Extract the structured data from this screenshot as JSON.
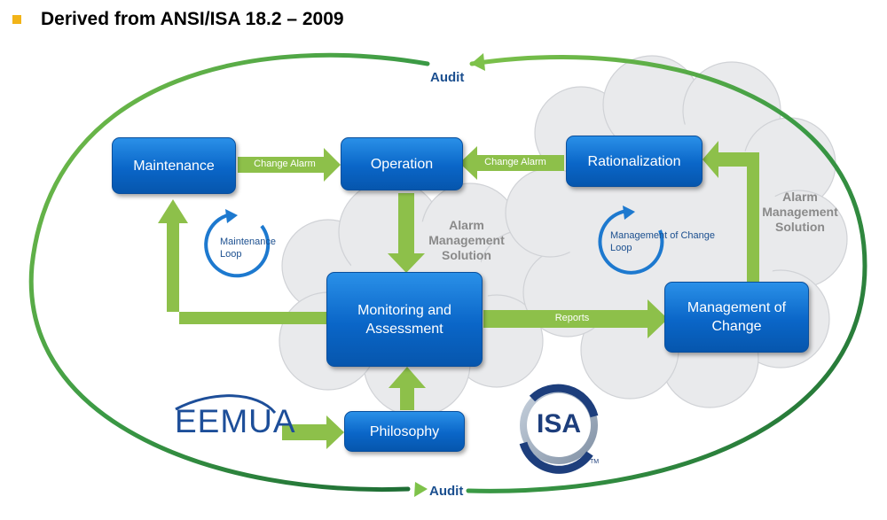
{
  "header": {
    "title": "Derived from ANSI/ISA 18.2 – 2009"
  },
  "boxes": {
    "maintenance": "Maintenance",
    "operation": "Operation",
    "rationalization": "Rationalization",
    "monitoring": "Monitoring and Assessment",
    "moc": "Management of Change",
    "philosophy": "Philosophy"
  },
  "arrow_labels": {
    "change_alarm_left": "Change Alarm",
    "change_alarm_right": "Change Alarm",
    "reports": "Reports"
  },
  "cloud_labels": {
    "left": "Alarm Management Solution",
    "right": "Alarm Management Solution"
  },
  "loops": {
    "maintenance": "Maintenance Loop",
    "moc": "Management of Change Loop"
  },
  "audit": {
    "top": "Audit",
    "bottom": "Audit"
  },
  "logos": {
    "eemua": "EEMUA",
    "isa": "ISA",
    "isa_tm": "TM"
  },
  "colors": {
    "box_blue": "#0a66c8",
    "arrow_green": "#8dc04a",
    "orbit_green": "#2e8b3f",
    "loop_blue": "#1d79cf",
    "cloud_gray": "#e7e8ea",
    "text_gray": "#8a8a8a",
    "text_navy": "#1b4f8f",
    "bullet_yellow": "#f2b418"
  },
  "icons": {
    "loop": "circular-arrow-icon",
    "bullet": "square-bullet-icon"
  }
}
